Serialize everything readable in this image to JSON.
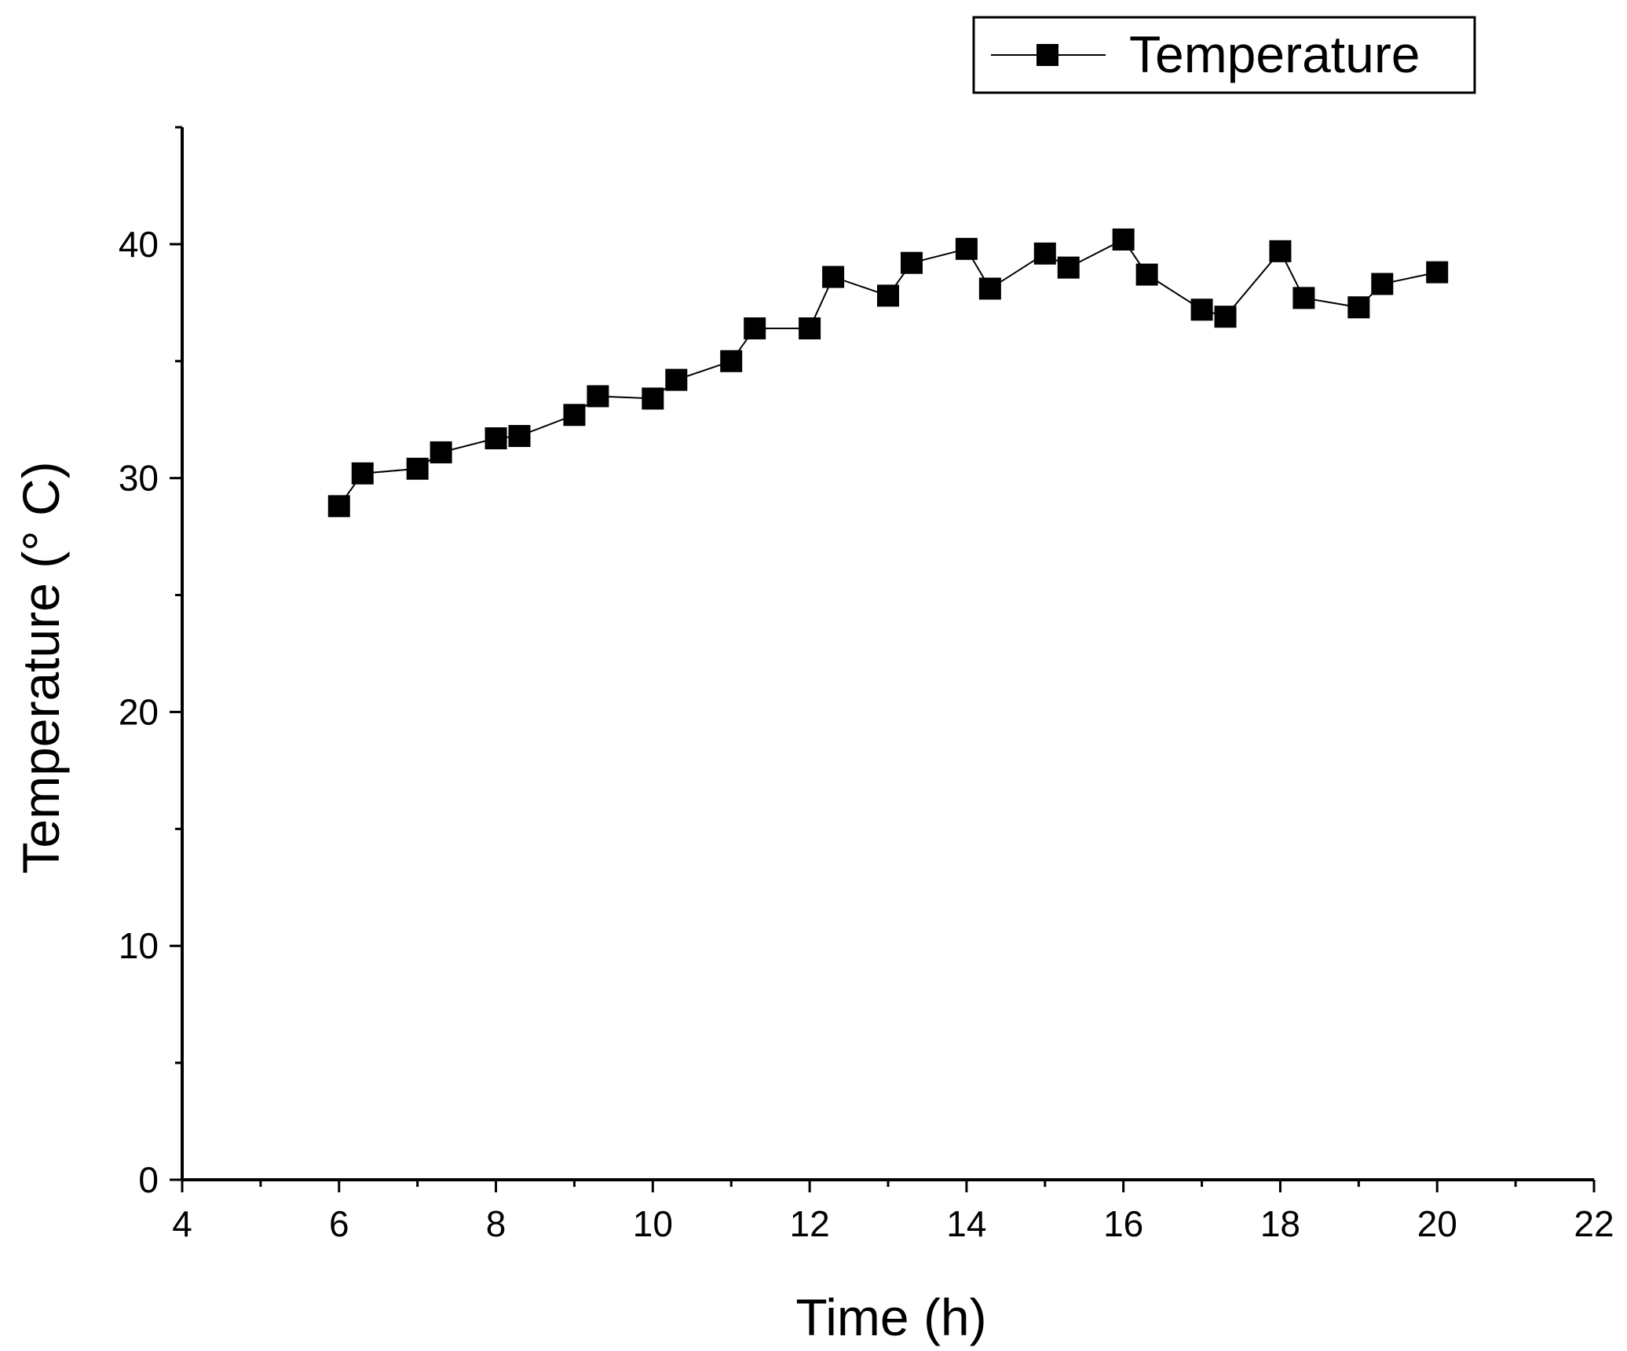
{
  "chart_data": {
    "type": "line",
    "title": "",
    "xlabel": "Time (h)",
    "ylabel": "Temperature (° C)",
    "xlim": [
      4,
      22
    ],
    "ylim": [
      0,
      45
    ],
    "xticks": [
      4,
      6,
      8,
      10,
      12,
      14,
      16,
      18,
      20,
      22
    ],
    "yticks": [
      0,
      10,
      20,
      30,
      40
    ],
    "xtick_labels": [
      "4",
      "6",
      "8",
      "10",
      "12",
      "14",
      "16",
      "18",
      "20",
      "22"
    ],
    "ytick_labels": [
      "0",
      "10",
      "20",
      "30",
      "40"
    ],
    "grid": false,
    "legend_position": "top-right",
    "series": [
      {
        "name": "Temperature",
        "marker": "square",
        "color": "#000000",
        "x": [
          6,
          6.3,
          7,
          7.3,
          8,
          8.3,
          9,
          9.3,
          10,
          10.3,
          11,
          11.3,
          12,
          12.3,
          13,
          13.3,
          14,
          14.3,
          15,
          15.3,
          16,
          16.3,
          17,
          17.3,
          18,
          18.3,
          19,
          19.3,
          20
        ],
        "y": [
          28.8,
          30.2,
          30.4,
          31.1,
          31.7,
          31.8,
          32.7,
          33.5,
          33.4,
          34.2,
          35.0,
          36.4,
          36.4,
          38.6,
          37.8,
          39.2,
          39.8,
          38.1,
          39.6,
          39.0,
          40.2,
          38.7,
          37.2,
          36.9,
          39.7,
          37.7,
          37.3,
          38.3,
          38.8
        ]
      }
    ]
  }
}
